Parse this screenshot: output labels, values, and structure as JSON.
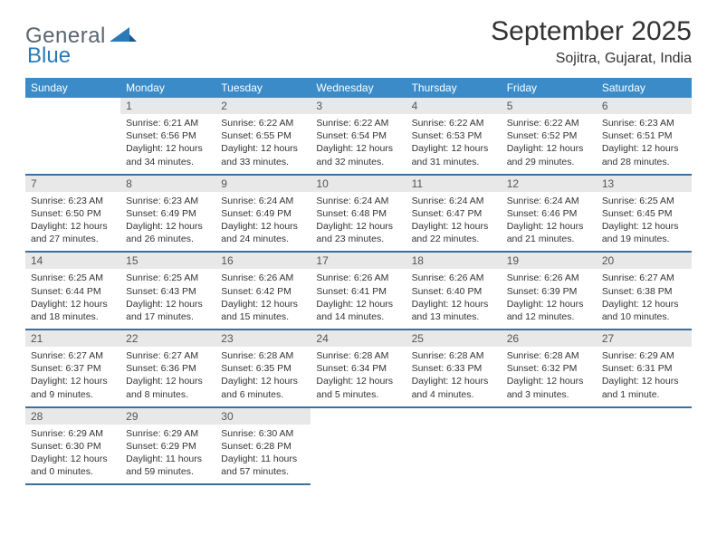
{
  "logo": {
    "text1": "General",
    "text2": "Blue"
  },
  "title": "September 2025",
  "location": "Sojitra, Gujarat, India",
  "colors": {
    "header_bg": "#3b8bc8",
    "header_text": "#ffffff",
    "daynum_bg": "#e8e8e8",
    "daynum_text": "#555555",
    "rule": "#3b6fa0",
    "body_text": "#333333",
    "logo_gray": "#5a6570",
    "logo_blue": "#2a7ab8",
    "page_bg": "#ffffff"
  },
  "weekdays": [
    "Sunday",
    "Monday",
    "Tuesday",
    "Wednesday",
    "Thursday",
    "Friday",
    "Saturday"
  ],
  "weeks": [
    [
      null,
      {
        "n": "1",
        "sr": "Sunrise: 6:21 AM",
        "ss": "Sunset: 6:56 PM",
        "dl": "Daylight: 12 hours and 34 minutes."
      },
      {
        "n": "2",
        "sr": "Sunrise: 6:22 AM",
        "ss": "Sunset: 6:55 PM",
        "dl": "Daylight: 12 hours and 33 minutes."
      },
      {
        "n": "3",
        "sr": "Sunrise: 6:22 AM",
        "ss": "Sunset: 6:54 PM",
        "dl": "Daylight: 12 hours and 32 minutes."
      },
      {
        "n": "4",
        "sr": "Sunrise: 6:22 AM",
        "ss": "Sunset: 6:53 PM",
        "dl": "Daylight: 12 hours and 31 minutes."
      },
      {
        "n": "5",
        "sr": "Sunrise: 6:22 AM",
        "ss": "Sunset: 6:52 PM",
        "dl": "Daylight: 12 hours and 29 minutes."
      },
      {
        "n": "6",
        "sr": "Sunrise: 6:23 AM",
        "ss": "Sunset: 6:51 PM",
        "dl": "Daylight: 12 hours and 28 minutes."
      }
    ],
    [
      {
        "n": "7",
        "sr": "Sunrise: 6:23 AM",
        "ss": "Sunset: 6:50 PM",
        "dl": "Daylight: 12 hours and 27 minutes."
      },
      {
        "n": "8",
        "sr": "Sunrise: 6:23 AM",
        "ss": "Sunset: 6:49 PM",
        "dl": "Daylight: 12 hours and 26 minutes."
      },
      {
        "n": "9",
        "sr": "Sunrise: 6:24 AM",
        "ss": "Sunset: 6:49 PM",
        "dl": "Daylight: 12 hours and 24 minutes."
      },
      {
        "n": "10",
        "sr": "Sunrise: 6:24 AM",
        "ss": "Sunset: 6:48 PM",
        "dl": "Daylight: 12 hours and 23 minutes."
      },
      {
        "n": "11",
        "sr": "Sunrise: 6:24 AM",
        "ss": "Sunset: 6:47 PM",
        "dl": "Daylight: 12 hours and 22 minutes."
      },
      {
        "n": "12",
        "sr": "Sunrise: 6:24 AM",
        "ss": "Sunset: 6:46 PM",
        "dl": "Daylight: 12 hours and 21 minutes."
      },
      {
        "n": "13",
        "sr": "Sunrise: 6:25 AM",
        "ss": "Sunset: 6:45 PM",
        "dl": "Daylight: 12 hours and 19 minutes."
      }
    ],
    [
      {
        "n": "14",
        "sr": "Sunrise: 6:25 AM",
        "ss": "Sunset: 6:44 PM",
        "dl": "Daylight: 12 hours and 18 minutes."
      },
      {
        "n": "15",
        "sr": "Sunrise: 6:25 AM",
        "ss": "Sunset: 6:43 PM",
        "dl": "Daylight: 12 hours and 17 minutes."
      },
      {
        "n": "16",
        "sr": "Sunrise: 6:26 AM",
        "ss": "Sunset: 6:42 PM",
        "dl": "Daylight: 12 hours and 15 minutes."
      },
      {
        "n": "17",
        "sr": "Sunrise: 6:26 AM",
        "ss": "Sunset: 6:41 PM",
        "dl": "Daylight: 12 hours and 14 minutes."
      },
      {
        "n": "18",
        "sr": "Sunrise: 6:26 AM",
        "ss": "Sunset: 6:40 PM",
        "dl": "Daylight: 12 hours and 13 minutes."
      },
      {
        "n": "19",
        "sr": "Sunrise: 6:26 AM",
        "ss": "Sunset: 6:39 PM",
        "dl": "Daylight: 12 hours and 12 minutes."
      },
      {
        "n": "20",
        "sr": "Sunrise: 6:27 AM",
        "ss": "Sunset: 6:38 PM",
        "dl": "Daylight: 12 hours and 10 minutes."
      }
    ],
    [
      {
        "n": "21",
        "sr": "Sunrise: 6:27 AM",
        "ss": "Sunset: 6:37 PM",
        "dl": "Daylight: 12 hours and 9 minutes."
      },
      {
        "n": "22",
        "sr": "Sunrise: 6:27 AM",
        "ss": "Sunset: 6:36 PM",
        "dl": "Daylight: 12 hours and 8 minutes."
      },
      {
        "n": "23",
        "sr": "Sunrise: 6:28 AM",
        "ss": "Sunset: 6:35 PM",
        "dl": "Daylight: 12 hours and 6 minutes."
      },
      {
        "n": "24",
        "sr": "Sunrise: 6:28 AM",
        "ss": "Sunset: 6:34 PM",
        "dl": "Daylight: 12 hours and 5 minutes."
      },
      {
        "n": "25",
        "sr": "Sunrise: 6:28 AM",
        "ss": "Sunset: 6:33 PM",
        "dl": "Daylight: 12 hours and 4 minutes."
      },
      {
        "n": "26",
        "sr": "Sunrise: 6:28 AM",
        "ss": "Sunset: 6:32 PM",
        "dl": "Daylight: 12 hours and 3 minutes."
      },
      {
        "n": "27",
        "sr": "Sunrise: 6:29 AM",
        "ss": "Sunset: 6:31 PM",
        "dl": "Daylight: 12 hours and 1 minute."
      }
    ],
    [
      {
        "n": "28",
        "sr": "Sunrise: 6:29 AM",
        "ss": "Sunset: 6:30 PM",
        "dl": "Daylight: 12 hours and 0 minutes."
      },
      {
        "n": "29",
        "sr": "Sunrise: 6:29 AM",
        "ss": "Sunset: 6:29 PM",
        "dl": "Daylight: 11 hours and 59 minutes."
      },
      {
        "n": "30",
        "sr": "Sunrise: 6:30 AM",
        "ss": "Sunset: 6:28 PM",
        "dl": "Daylight: 11 hours and 57 minutes."
      },
      null,
      null,
      null,
      null
    ]
  ]
}
